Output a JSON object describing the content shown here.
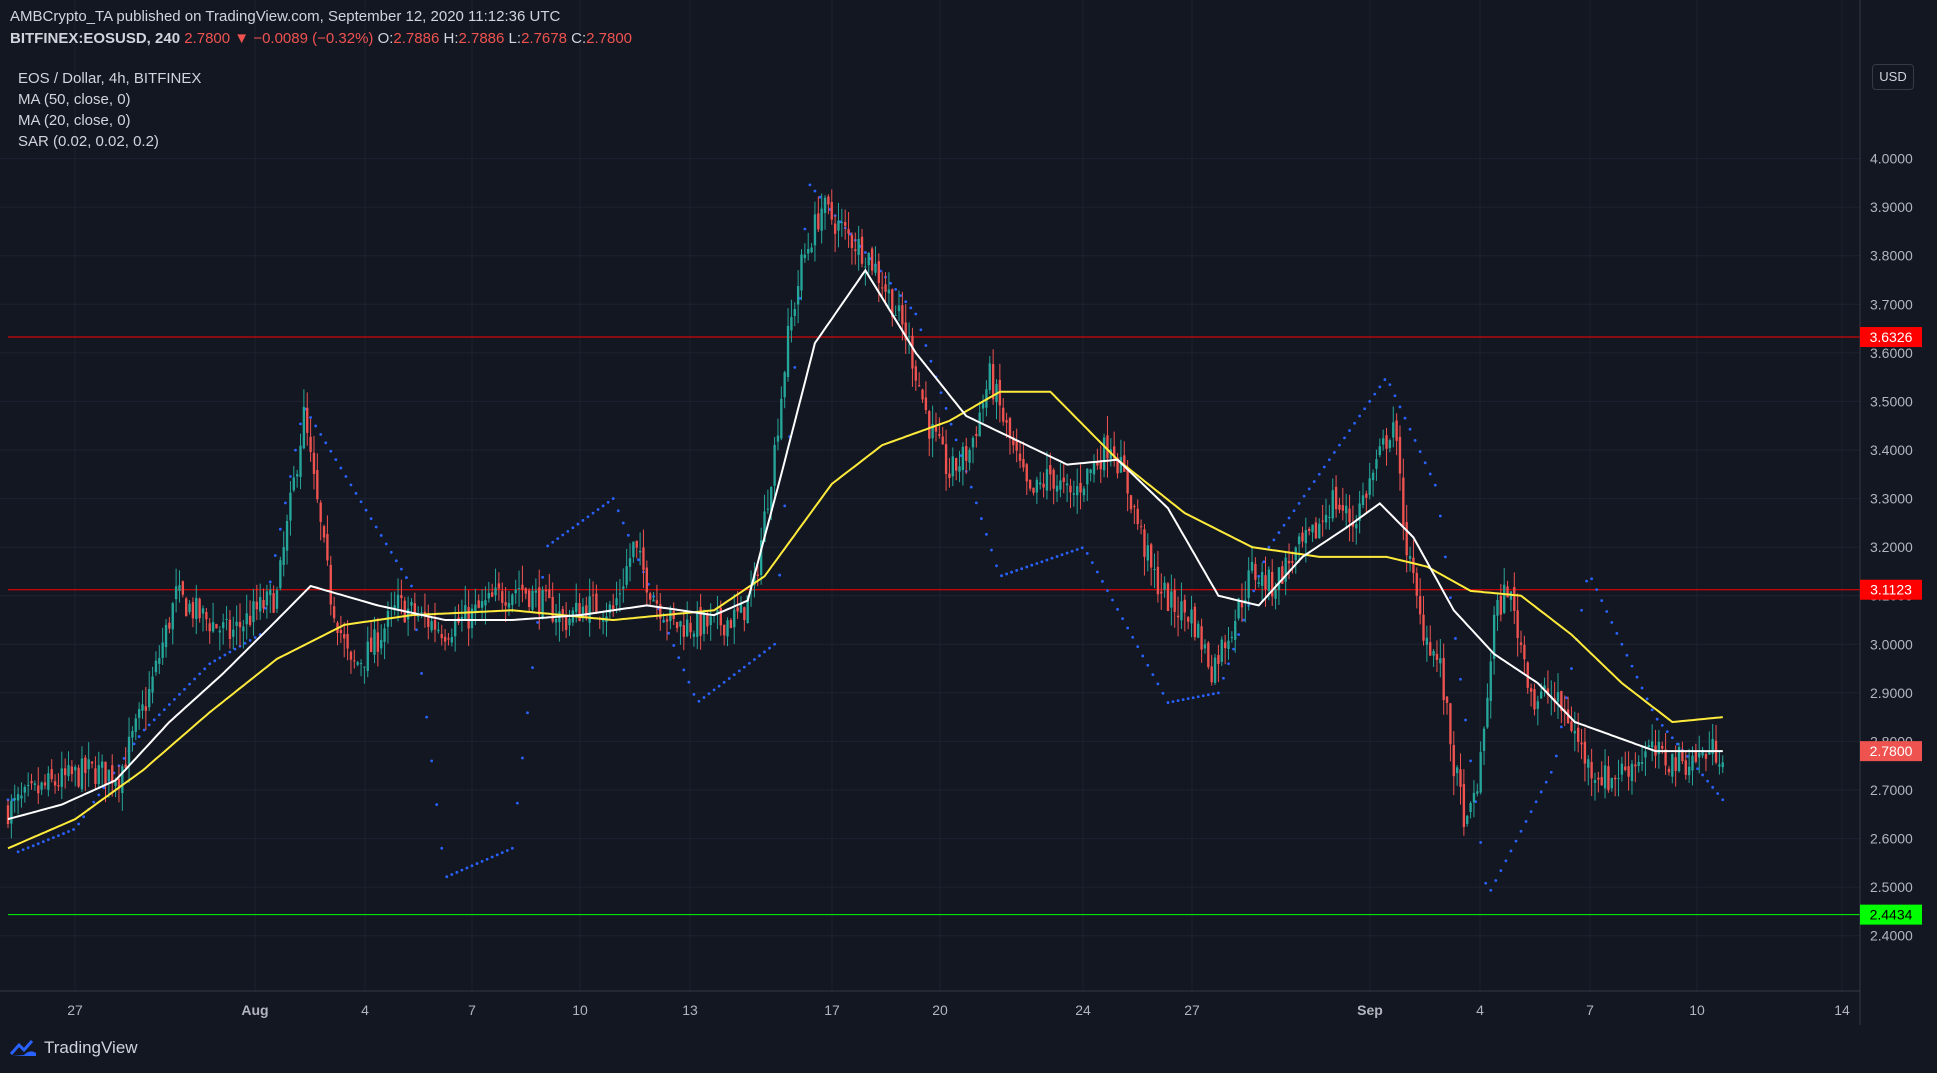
{
  "header": {
    "publish_line": "AMBCrypto_TA published on TradingView.com, September 12, 2020 11:12:36 UTC",
    "symbol": "BITFINEX:EOSUSD, 240",
    "last": "2.7800",
    "change_arrow": "▼",
    "change": "−0.0089 (−0.32%)",
    "o_label": "O:",
    "o_value": "2.7886",
    "h_label": "H:",
    "h_value": "2.7886",
    "l_label": "L:",
    "l_value": "2.7678",
    "c_label": "C:",
    "c_value": "2.7800"
  },
  "legend": {
    "title": "EOS / Dollar, 4h, BITFINEX",
    "ma50": "MA (50, close, 0)",
    "ma20": "MA (20, close, 0)",
    "sar": "SAR (0.02, 0.02, 0.2)"
  },
  "currency_button": "USD",
  "footer": {
    "brand": "TradingView"
  },
  "colors": {
    "background": "#131722",
    "up": "#26a69a",
    "down": "#ef5350",
    "ma50": "#ffeb3b",
    "ma20": "#ffffff",
    "sar": "#2962ff",
    "resistance": "#ff0000",
    "support": "#00ff00"
  },
  "chart_data": {
    "type": "candlestick",
    "timeframe": "4h",
    "y_ticks": [
      "4.0000",
      "3.9000",
      "3.8000",
      "3.7000",
      "3.6000",
      "3.5000",
      "3.4000",
      "3.3000",
      "3.2000",
      "3.1000",
      "3.0000",
      "2.9000",
      "2.8000",
      "2.7000",
      "2.6000",
      "2.5000",
      "2.4000"
    ],
    "x_ticks": [
      "27",
      "Aug",
      "4",
      "7",
      "10",
      "13",
      "17",
      "20",
      "24",
      "27",
      "Sep",
      "4",
      "7",
      "10",
      "14"
    ],
    "ylim": [
      2.35,
      4.1
    ],
    "price_levels": [
      {
        "value": 3.6326,
        "label": "3.6326",
        "color": "#ff0000"
      },
      {
        "value": 3.1123,
        "label": "3.1123",
        "color": "#ff0000"
      },
      {
        "value": 2.4434,
        "label": "2.4434",
        "color": "#00ff00"
      }
    ],
    "last_price": {
      "value": 2.78,
      "label": "2.7800"
    },
    "series": [
      {
        "name": "EOS / Dollar",
        "kind": "candles",
        "close_path": [
          [
            0,
            2.66
          ],
          [
            12,
            2.71
          ],
          [
            24,
            2.74
          ],
          [
            33,
            2.73
          ],
          [
            42,
            2.9
          ],
          [
            50,
            3.1
          ],
          [
            57,
            3.06
          ],
          [
            66,
            3.02
          ],
          [
            74,
            3.07
          ],
          [
            80,
            3.1
          ],
          [
            88,
            3.47
          ],
          [
            96,
            3.1
          ],
          [
            102,
            2.95
          ],
          [
            108,
            2.99
          ],
          [
            116,
            3.08
          ],
          [
            124,
            3.05
          ],
          [
            130,
            3.03
          ],
          [
            138,
            3.06
          ],
          [
            146,
            3.1
          ],
          [
            152,
            3.12
          ],
          [
            160,
            3.08
          ],
          [
            166,
            3.05
          ],
          [
            172,
            3.08
          ],
          [
            180,
            3.07
          ],
          [
            186,
            3.2
          ],
          [
            192,
            3.1
          ],
          [
            198,
            3.04
          ],
          [
            210,
            3.04
          ],
          [
            218,
            3.06
          ],
          [
            222,
            3.12
          ],
          [
            228,
            3.4
          ],
          [
            232,
            3.63
          ],
          [
            236,
            3.78
          ],
          [
            242,
            3.9
          ],
          [
            250,
            3.84
          ],
          [
            256,
            3.8
          ],
          [
            262,
            3.72
          ],
          [
            268,
            3.62
          ],
          [
            274,
            3.45
          ],
          [
            280,
            3.35
          ],
          [
            286,
            3.4
          ],
          [
            292,
            3.55
          ],
          [
            298,
            3.42
          ],
          [
            304,
            3.3
          ],
          [
            310,
            3.35
          ],
          [
            316,
            3.3
          ],
          [
            322,
            3.36
          ],
          [
            328,
            3.42
          ],
          [
            334,
            3.3
          ],
          [
            340,
            3.15
          ],
          [
            346,
            3.08
          ],
          [
            352,
            3.06
          ],
          [
            358,
            2.95
          ],
          [
            364,
            3.04
          ],
          [
            370,
            3.15
          ],
          [
            376,
            3.12
          ],
          [
            382,
            3.18
          ],
          [
            388,
            3.22
          ],
          [
            394,
            3.3
          ],
          [
            400,
            3.25
          ],
          [
            406,
            3.35
          ],
          [
            412,
            3.46
          ],
          [
            416,
            3.2
          ],
          [
            420,
            3.05
          ],
          [
            426,
            2.95
          ],
          [
            430,
            2.75
          ],
          [
            434,
            2.62
          ],
          [
            438,
            2.75
          ],
          [
            442,
            3.05
          ],
          [
            446,
            3.12
          ],
          [
            450,
            3.0
          ],
          [
            454,
            2.88
          ],
          [
            458,
            2.9
          ],
          [
            464,
            2.85
          ],
          [
            470,
            2.75
          ],
          [
            476,
            2.72
          ],
          [
            482,
            2.75
          ],
          [
            488,
            2.78
          ],
          [
            494,
            2.76
          ],
          [
            500,
            2.76
          ],
          [
            506,
            2.78
          ],
          [
            510,
            2.78
          ]
        ]
      },
      {
        "name": "MA (20, close, 0)",
        "kind": "line",
        "values": [
          [
            0,
            2.64
          ],
          [
            16,
            2.67
          ],
          [
            32,
            2.72
          ],
          [
            48,
            2.84
          ],
          [
            64,
            2.94
          ],
          [
            80,
            3.05
          ],
          [
            90,
            3.12
          ],
          [
            110,
            3.08
          ],
          [
            130,
            3.05
          ],
          [
            150,
            3.05
          ],
          [
            170,
            3.06
          ],
          [
            190,
            3.08
          ],
          [
            210,
            3.06
          ],
          [
            220,
            3.09
          ],
          [
            230,
            3.35
          ],
          [
            240,
            3.62
          ],
          [
            255,
            3.77
          ],
          [
            270,
            3.6
          ],
          [
            285,
            3.47
          ],
          [
            300,
            3.42
          ],
          [
            315,
            3.37
          ],
          [
            330,
            3.38
          ],
          [
            345,
            3.28
          ],
          [
            360,
            3.1
          ],
          [
            372,
            3.08
          ],
          [
            385,
            3.18
          ],
          [
            398,
            3.24
          ],
          [
            408,
            3.29
          ],
          [
            418,
            3.22
          ],
          [
            430,
            3.07
          ],
          [
            442,
            2.98
          ],
          [
            455,
            2.92
          ],
          [
            466,
            2.84
          ],
          [
            478,
            2.81
          ],
          [
            490,
            2.78
          ],
          [
            510,
            2.78
          ]
        ]
      },
      {
        "name": "MA (50, close, 0)",
        "kind": "line",
        "values": [
          [
            0,
            2.58
          ],
          [
            20,
            2.64
          ],
          [
            40,
            2.74
          ],
          [
            60,
            2.86
          ],
          [
            80,
            2.97
          ],
          [
            100,
            3.04
          ],
          [
            120,
            3.06
          ],
          [
            150,
            3.07
          ],
          [
            180,
            3.05
          ],
          [
            210,
            3.07
          ],
          [
            225,
            3.14
          ],
          [
            245,
            3.33
          ],
          [
            260,
            3.41
          ],
          [
            280,
            3.46
          ],
          [
            295,
            3.52
          ],
          [
            310,
            3.52
          ],
          [
            330,
            3.38
          ],
          [
            350,
            3.27
          ],
          [
            370,
            3.2
          ],
          [
            390,
            3.18
          ],
          [
            410,
            3.18
          ],
          [
            422,
            3.16
          ],
          [
            435,
            3.11
          ],
          [
            450,
            3.1
          ],
          [
            465,
            3.02
          ],
          [
            480,
            2.92
          ],
          [
            495,
            2.84
          ],
          [
            510,
            2.85
          ]
        ]
      },
      {
        "name": "SAR (0.02, 0.02, 0.2)",
        "kind": "dots",
        "values": [
          [
            2,
            2.57
          ],
          [
            20,
            2.62
          ],
          [
            40,
            2.82
          ],
          [
            60,
            2.96
          ],
          [
            75,
            3.02
          ],
          [
            88,
            3.49
          ],
          [
            120,
            3.12
          ],
          [
            130,
            2.52
          ],
          [
            150,
            2.58
          ],
          [
            160,
            3.2
          ],
          [
            180,
            3.3
          ],
          [
            205,
            2.88
          ],
          [
            228,
            3.0
          ],
          [
            238,
            3.95
          ],
          [
            270,
            3.68
          ],
          [
            295,
            3.14
          ],
          [
            320,
            3.2
          ],
          [
            345,
            2.88
          ],
          [
            360,
            2.9
          ],
          [
            375,
            3.2
          ],
          [
            410,
            3.55
          ],
          [
            425,
            3.32
          ],
          [
            440,
            2.48
          ],
          [
            460,
            2.75
          ],
          [
            470,
            3.15
          ],
          [
            490,
            2.85
          ],
          [
            510,
            2.68
          ]
        ]
      }
    ]
  }
}
